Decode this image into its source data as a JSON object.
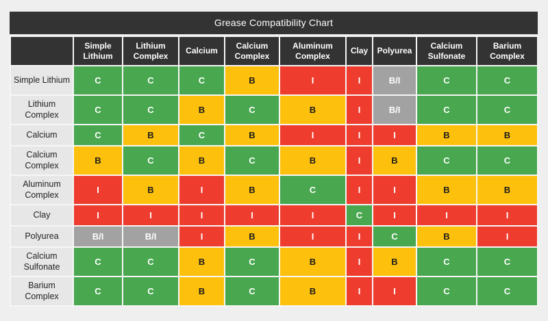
{
  "title": "Grease Compatibility Chart",
  "columns": [
    "Simple Lithium",
    "Lithium Complex",
    "Calcium",
    "Calcium Complex",
    "Aluminum Complex",
    "Clay",
    "Polyurea",
    "Calcium Sulfonate",
    "Barium Complex"
  ],
  "rows": [
    {
      "label": "Simple Lithium",
      "cells": [
        "C",
        "C",
        "C",
        "B",
        "I",
        "I",
        "B/I",
        "C",
        "C"
      ]
    },
    {
      "label": "Lithium Complex",
      "cells": [
        "C",
        "C",
        "B",
        "C",
        "B",
        "I",
        "B/I",
        "C",
        "C"
      ]
    },
    {
      "label": "Calcium",
      "cells": [
        "C",
        "B",
        "C",
        "B",
        "I",
        "I",
        "I",
        "B",
        "B"
      ]
    },
    {
      "label": "Calcium Complex",
      "cells": [
        "B",
        "C",
        "B",
        "C",
        "B",
        "I",
        "B",
        "C",
        "C"
      ]
    },
    {
      "label": "Aluminum Complex",
      "cells": [
        "I",
        "B",
        "I",
        "B",
        "C",
        "I",
        "I",
        "B",
        "B"
      ]
    },
    {
      "label": "Clay",
      "cells": [
        "I",
        "I",
        "I",
        "I",
        "I",
        "C",
        "I",
        "I",
        "I"
      ]
    },
    {
      "label": "Polyurea",
      "cells": [
        "B/I",
        "B/I",
        "I",
        "B",
        "I",
        "I",
        "C",
        "B",
        "I"
      ]
    },
    {
      "label": "Calcium Sulfonate",
      "cells": [
        "C",
        "C",
        "B",
        "C",
        "B",
        "I",
        "B",
        "C",
        "C"
      ]
    },
    {
      "label": "Barium Complex",
      "cells": [
        "C",
        "C",
        "B",
        "C",
        "B",
        "I",
        "I",
        "C",
        "C"
      ]
    }
  ],
  "cell_styles": {
    "C": {
      "bg": "#48a74f",
      "text": "#ffffff"
    },
    "B": {
      "bg": "#fdc10d",
      "text": "#1c1c1c"
    },
    "I": {
      "bg": "#ee3c2f",
      "text": "#ffffff"
    },
    "B/I": {
      "bg": "#a2a2a2",
      "text": "#ffffff"
    }
  },
  "colors": {
    "header_bg": "#333333",
    "header_text": "#ffffff",
    "row_label_bg": "#e7e7e7",
    "page_bg": "#efefef"
  },
  "chart_data": {
    "type": "heatmap",
    "title": "Grease Compatibility Chart",
    "x_categories": [
      "Simple Lithium",
      "Lithium Complex",
      "Calcium",
      "Calcium Complex",
      "Aluminum Complex",
      "Clay",
      "Polyurea",
      "Calcium Sulfonate",
      "Barium Complex"
    ],
    "y_categories": [
      "Simple Lithium",
      "Lithium Complex",
      "Calcium",
      "Calcium Complex",
      "Aluminum Complex",
      "Clay",
      "Polyurea",
      "Calcium Sulfonate",
      "Barium Complex"
    ],
    "values": [
      [
        "C",
        "C",
        "C",
        "B",
        "I",
        "I",
        "B/I",
        "C",
        "C"
      ],
      [
        "C",
        "C",
        "B",
        "C",
        "B",
        "I",
        "B/I",
        "C",
        "C"
      ],
      [
        "C",
        "B",
        "C",
        "B",
        "I",
        "I",
        "I",
        "B",
        "B"
      ],
      [
        "B",
        "C",
        "B",
        "C",
        "B",
        "I",
        "B",
        "C",
        "C"
      ],
      [
        "I",
        "B",
        "I",
        "B",
        "C",
        "I",
        "I",
        "B",
        "B"
      ],
      [
        "I",
        "I",
        "I",
        "I",
        "I",
        "C",
        "I",
        "I",
        "I"
      ],
      [
        "B/I",
        "B/I",
        "I",
        "B",
        "I",
        "I",
        "C",
        "B",
        "I"
      ],
      [
        "C",
        "C",
        "B",
        "C",
        "B",
        "I",
        "B",
        "C",
        "C"
      ],
      [
        "C",
        "C",
        "B",
        "C",
        "B",
        "I",
        "I",
        "C",
        "C"
      ]
    ],
    "value_colors": {
      "C": "#48a74f",
      "B": "#fdc10d",
      "I": "#ee3c2f",
      "B/I": "#a2a2a2"
    },
    "legend_position": "none",
    "grid": true
  }
}
